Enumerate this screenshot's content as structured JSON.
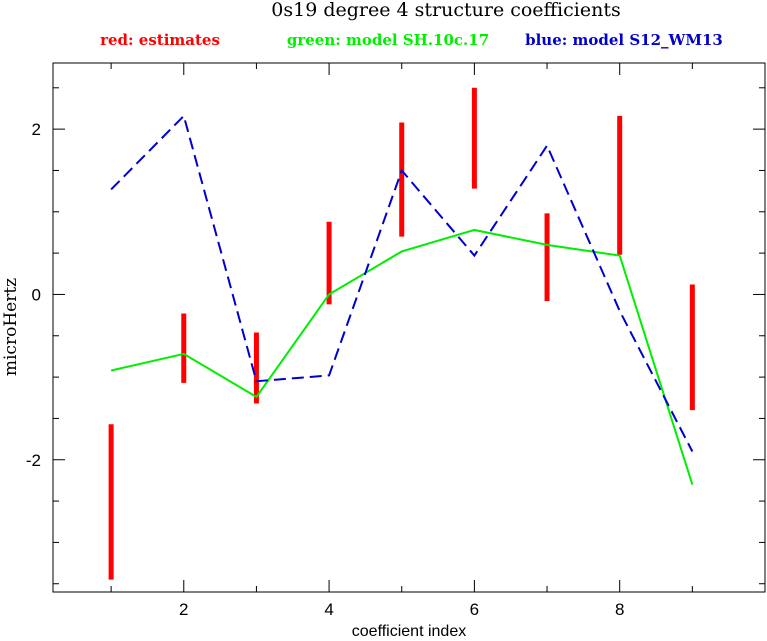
{
  "chart_data": {
    "type": "line",
    "title": "0s19 degree 4 structure coefficients",
    "legend": [
      {
        "text": "red: estimates",
        "color": "#ff0000"
      },
      {
        "text": "green: model SH.10c.17",
        "color": "#00ee00"
      },
      {
        "text": "blue: model S12_WM13",
        "color": "#0000cc"
      }
    ],
    "xlabel": "coefficient index",
    "ylabel": "microHertz",
    "xlim": [
      0.2,
      10.0
    ],
    "ylim": [
      -3.6,
      2.8
    ],
    "x_ticks": [
      2,
      4,
      6,
      8
    ],
    "y_ticks": [
      -2,
      0,
      2
    ],
    "x_minor_step": 1,
    "y_minor_step": 0.5,
    "grid": false,
    "series": [
      {
        "name": "red: estimates",
        "style": "errorbar",
        "color": "#ff0000",
        "x": [
          1,
          2,
          3,
          4,
          5,
          6,
          7,
          8,
          9
        ],
        "low": [
          -3.45,
          -1.07,
          -1.32,
          -0.12,
          0.7,
          1.28,
          -0.08,
          0.48,
          -1.4
        ],
        "high": [
          -1.57,
          -0.23,
          -0.46,
          0.88,
          2.08,
          2.5,
          0.98,
          2.16,
          0.12
        ]
      },
      {
        "name": "green: model SH.10c.17",
        "style": "solid",
        "color": "#00ee00",
        "x": [
          1,
          2,
          3,
          4,
          5,
          6,
          7,
          8,
          9
        ],
        "y": [
          -0.92,
          -0.72,
          -1.24,
          0.0,
          0.52,
          0.78,
          0.6,
          0.47,
          -2.3
        ]
      },
      {
        "name": "blue: model S12_WM13",
        "style": "dashed",
        "color": "#0000cc",
        "x": [
          1,
          2,
          3,
          4,
          5,
          6,
          7,
          8,
          9
        ],
        "y": [
          1.27,
          2.16,
          -1.05,
          -0.98,
          1.5,
          0.47,
          1.8,
          -0.2,
          -1.9
        ]
      }
    ]
  }
}
